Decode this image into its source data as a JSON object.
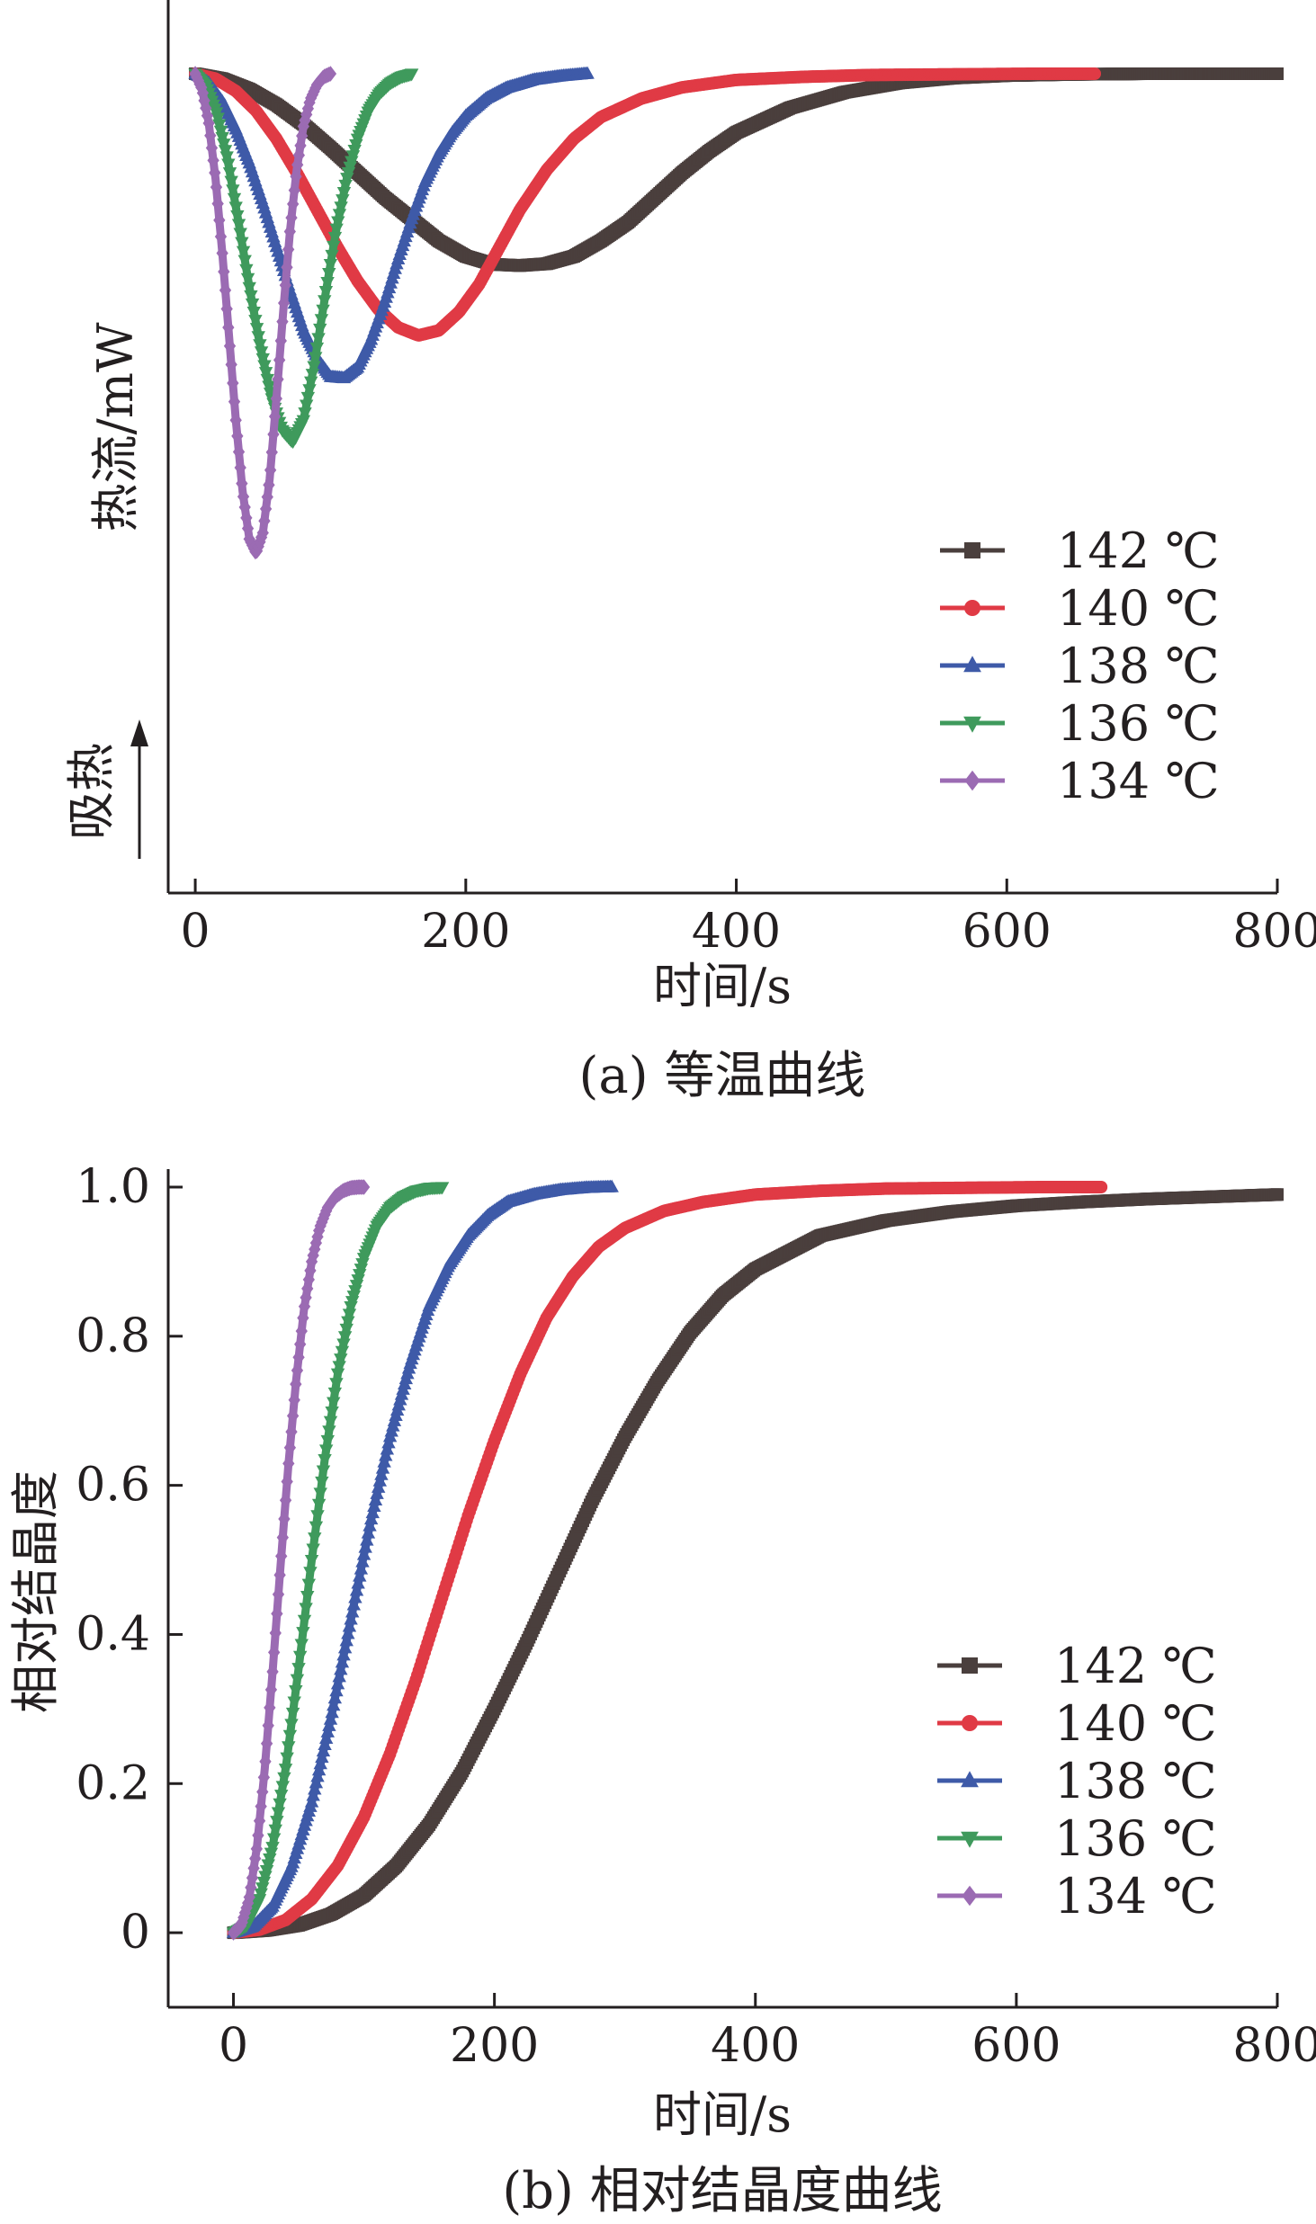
{
  "colors": {
    "142": "#4a3f3d",
    "140": "#e03a45",
    "138": "#3e5aa8",
    "136": "#3f9a5c",
    "134": "#9b6bb3",
    "axis": "#231f20"
  },
  "endotherm_label": "吸热",
  "chart_data": [
    {
      "type": "line",
      "caption": "(a) 等温曲线",
      "xlabel": "时间/s",
      "ylabel": "热流/mW",
      "xlim": [
        -20,
        800
      ],
      "xticks": [
        "0",
        "200",
        "400",
        "600",
        "800"
      ],
      "yticks": [],
      "ylim": [
        0,
        1
      ],
      "legend_position": "lower-right",
      "series": [
        {
          "name": "142 ℃",
          "marker": "square",
          "color_key": "142",
          "x": [
            0,
            20,
            40,
            60,
            80,
            100,
            120,
            140,
            160,
            180,
            200,
            220,
            240,
            260,
            280,
            300,
            320,
            340,
            360,
            380,
            400,
            440,
            480,
            520,
            560,
            600,
            650,
            700,
            750,
            800
          ],
          "y": [
            1.0,
            0.992,
            0.975,
            0.95,
            0.918,
            0.88,
            0.84,
            0.8,
            0.765,
            0.73,
            0.705,
            0.692,
            0.69,
            0.693,
            0.705,
            0.73,
            0.76,
            0.8,
            0.84,
            0.875,
            0.905,
            0.945,
            0.97,
            0.985,
            0.993,
            0.997,
            0.999,
            1.0,
            1.0,
            1.0
          ]
        },
        {
          "name": "140 ℃",
          "marker": "circle",
          "color_key": "140",
          "x": [
            0,
            15,
            30,
            45,
            60,
            75,
            90,
            105,
            120,
            135,
            150,
            165,
            180,
            195,
            210,
            225,
            240,
            260,
            280,
            300,
            330,
            360,
            400,
            450,
            500,
            560,
            620,
            665
          ],
          "y": [
            1.0,
            0.992,
            0.972,
            0.94,
            0.895,
            0.84,
            0.78,
            0.72,
            0.665,
            0.62,
            0.59,
            0.577,
            0.585,
            0.615,
            0.66,
            0.72,
            0.78,
            0.845,
            0.895,
            0.93,
            0.96,
            0.978,
            0.99,
            0.995,
            0.998,
            0.999,
            1.0,
            1.0
          ]
        },
        {
          "name": "138 ℃",
          "marker": "triangle-up",
          "color_key": "138",
          "x": [
            0,
            10,
            20,
            30,
            40,
            50,
            60,
            70,
            80,
            90,
            100,
            110,
            120,
            130,
            140,
            150,
            160,
            170,
            180,
            190,
            200,
            215,
            230,
            250,
            270,
            290
          ],
          "y": [
            1.0,
            0.985,
            0.955,
            0.91,
            0.855,
            0.79,
            0.72,
            0.65,
            0.585,
            0.54,
            0.51,
            0.508,
            0.525,
            0.57,
            0.63,
            0.7,
            0.765,
            0.825,
            0.87,
            0.905,
            0.932,
            0.96,
            0.977,
            0.99,
            0.996,
            1.0
          ]
        },
        {
          "name": "136 ℃",
          "marker": "triangle-down",
          "color_key": "136",
          "x": [
            0,
            8,
            16,
            24,
            32,
            40,
            48,
            56,
            64,
            72,
            80,
            88,
            96,
            104,
            112,
            120,
            128,
            136,
            144,
            152,
            160
          ],
          "y": [
            1.0,
            0.98,
            0.935,
            0.86,
            0.76,
            0.655,
            0.56,
            0.48,
            0.425,
            0.405,
            0.44,
            0.53,
            0.64,
            0.745,
            0.83,
            0.895,
            0.94,
            0.968,
            0.985,
            0.995,
            1.0
          ]
        },
        {
          "name": "134 ℃",
          "marker": "diamond",
          "color_key": "134",
          "x": [
            0,
            5,
            10,
            15,
            20,
            25,
            30,
            35,
            40,
            45,
            50,
            55,
            60,
            65,
            70,
            75,
            80,
            85,
            90,
            95,
            100
          ],
          "y": [
            1.0,
            0.975,
            0.92,
            0.83,
            0.71,
            0.575,
            0.44,
            0.325,
            0.248,
            0.225,
            0.258,
            0.345,
            0.475,
            0.615,
            0.745,
            0.845,
            0.915,
            0.958,
            0.982,
            0.995,
            1.0
          ]
        }
      ]
    },
    {
      "type": "line",
      "caption": "(b) 相对结晶度曲线",
      "xlabel": "时间/s",
      "ylabel": "相对结晶度",
      "xlim": [
        -50,
        800
      ],
      "ylim": [
        -0.1,
        1.0
      ],
      "xticks": [
        "0",
        "200",
        "400",
        "600",
        "800"
      ],
      "yticks": [
        "0",
        "0.2",
        "0.4",
        "0.6",
        "0.8",
        "1.0"
      ],
      "legend_position": "lower-right",
      "series": [
        {
          "name": "142 ℃",
          "marker": "square",
          "color_key": "142",
          "x": [
            0,
            25,
            50,
            75,
            100,
            125,
            150,
            175,
            200,
            225,
            250,
            275,
            300,
            325,
            350,
            375,
            400,
            450,
            500,
            550,
            600,
            650,
            700,
            750,
            800
          ],
          "y": [
            0.0,
            0.003,
            0.01,
            0.025,
            0.05,
            0.09,
            0.145,
            0.215,
            0.3,
            0.39,
            0.485,
            0.58,
            0.665,
            0.74,
            0.805,
            0.855,
            0.89,
            0.935,
            0.955,
            0.967,
            0.975,
            0.98,
            0.984,
            0.987,
            0.99
          ]
        },
        {
          "name": "140 ℃",
          "marker": "circle",
          "color_key": "140",
          "x": [
            0,
            20,
            40,
            60,
            80,
            100,
            120,
            140,
            160,
            180,
            200,
            220,
            240,
            260,
            280,
            300,
            330,
            360,
            400,
            450,
            500,
            560,
            620,
            665
          ],
          "y": [
            0.0,
            0.004,
            0.017,
            0.045,
            0.09,
            0.155,
            0.24,
            0.34,
            0.45,
            0.56,
            0.66,
            0.75,
            0.825,
            0.88,
            0.92,
            0.945,
            0.968,
            0.98,
            0.99,
            0.995,
            0.998,
            0.999,
            1.0,
            1.0
          ]
        },
        {
          "name": "138 ℃",
          "marker": "triangle-up",
          "color_key": "138",
          "x": [
            0,
            15,
            30,
            45,
            60,
            75,
            90,
            105,
            120,
            135,
            150,
            165,
            180,
            195,
            210,
            230,
            250,
            270,
            290
          ],
          "y": [
            0.0,
            0.008,
            0.035,
            0.09,
            0.175,
            0.29,
            0.42,
            0.55,
            0.665,
            0.76,
            0.84,
            0.895,
            0.935,
            0.962,
            0.98,
            0.99,
            0.996,
            0.999,
            1.0
          ]
        },
        {
          "name": "136 ℃",
          "marker": "triangle-down",
          "color_key": "136",
          "x": [
            0,
            10,
            20,
            30,
            40,
            50,
            60,
            70,
            80,
            90,
            100,
            110,
            120,
            130,
            140,
            150,
            160
          ],
          "y": [
            0.0,
            0.01,
            0.045,
            0.115,
            0.22,
            0.355,
            0.5,
            0.635,
            0.75,
            0.84,
            0.905,
            0.948,
            0.973,
            0.987,
            0.995,
            0.999,
            1.0
          ]
        },
        {
          "name": "134 ℃",
          "marker": "diamond",
          "color_key": "134",
          "x": [
            0,
            6,
            12,
            18,
            24,
            30,
            36,
            42,
            48,
            54,
            60,
            66,
            72,
            78,
            84,
            90,
            96,
            100
          ],
          "y": [
            0.0,
            0.01,
            0.045,
            0.115,
            0.22,
            0.35,
            0.49,
            0.625,
            0.74,
            0.835,
            0.9,
            0.945,
            0.972,
            0.987,
            0.995,
            0.999,
            1.0,
            1.0
          ]
        }
      ]
    }
  ]
}
